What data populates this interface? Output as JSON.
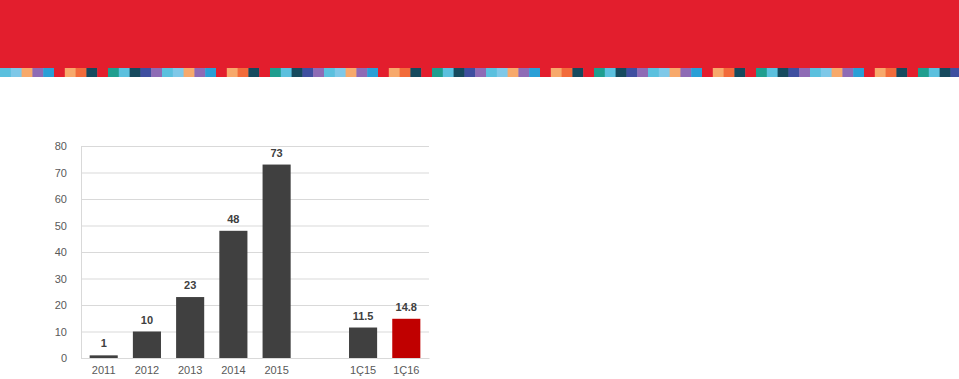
{
  "chart_data": {
    "type": "bar",
    "categories": [
      "2011",
      "2012",
      "2013",
      "2014",
      "2015",
      null,
      "1Ç15",
      "1Ç16"
    ],
    "values": [
      1,
      10,
      23,
      48,
      73,
      null,
      11.5,
      14.8
    ],
    "colors": [
      "#404040",
      "#404040",
      "#404040",
      "#404040",
      "#404040",
      null,
      "#404040",
      "#c00000"
    ],
    "ylim": [
      0,
      80
    ],
    "yticks": [
      0,
      10,
      20,
      30,
      40,
      50,
      60,
      70,
      80
    ],
    "grid": true,
    "data_labels": true
  }
}
